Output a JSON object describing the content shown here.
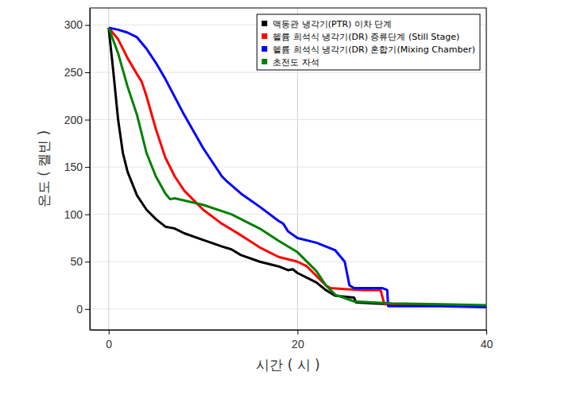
{
  "chart_data": {
    "type": "line",
    "x_label": "시간 ( 시 )",
    "y_label": "온도 ( 켈빈 )",
    "xlim": [
      -2,
      40
    ],
    "xticks": [
      0,
      20,
      40
    ],
    "ylim": [
      -22,
      318
    ],
    "yticks": [
      0,
      50,
      100,
      150,
      200,
      250,
      300
    ],
    "grid": true,
    "legend": "upper right",
    "series": [
      {
        "name": "맥동관 냉각기(PTR) 이차 단계",
        "color": "#000000",
        "x": [
          0,
          0.5,
          1,
          1.5,
          2,
          3,
          4,
          5,
          6,
          6.5,
          7,
          8,
          10,
          12,
          13,
          14,
          16,
          18,
          19,
          19.5,
          20,
          22,
          23,
          24,
          25,
          26,
          26.2,
          28,
          30,
          35,
          40
        ],
        "values": [
          297,
          250,
          200,
          165,
          145,
          120,
          105,
          95,
          87,
          86,
          85,
          80,
          73,
          66,
          63,
          57,
          50,
          45,
          41,
          42,
          38,
          28,
          20,
          14,
          13,
          12,
          7,
          6,
          5,
          4,
          3
        ]
      },
      {
        "name": "헬륨 희석식 냉각기(DR) 증류단계 (Still Stage)",
        "color": "#ff0000",
        "x": [
          0,
          1,
          2,
          3,
          3.5,
          4,
          5,
          6,
          7,
          8,
          10,
          12,
          14,
          16,
          18,
          20,
          21,
          22,
          23,
          23.5,
          25,
          27,
          28.8,
          29.2,
          30,
          35,
          40
        ],
        "values": [
          297,
          285,
          265,
          248,
          240,
          225,
          190,
          160,
          140,
          125,
          105,
          90,
          78,
          65,
          55,
          50,
          45,
          35,
          25,
          22,
          21,
          20,
          20,
          5,
          5,
          4,
          3
        ]
      },
      {
        "name": "헬륨 희석식 냉각기(DR) 혼합기(Mixing Chamber)",
        "color": "#0000ff",
        "x": [
          0,
          1,
          2,
          3,
          4,
          5,
          6,
          8,
          10,
          12,
          12.5,
          14,
          16,
          18,
          18.5,
          19,
          20,
          22,
          24,
          25,
          25.5,
          26,
          27,
          29,
          29.5,
          29.6,
          35,
          40
        ],
        "values": [
          297,
          295,
          292,
          287,
          275,
          260,
          243,
          205,
          170,
          140,
          135,
          122,
          108,
          93,
          90,
          82,
          75,
          70,
          62,
          50,
          25,
          22,
          22,
          22,
          20,
          3,
          3,
          2
        ]
      },
      {
        "name": "초전도 자석",
        "color": "#008000",
        "x": [
          0,
          1,
          2,
          3,
          3.5,
          4,
          5,
          6,
          6.5,
          7,
          10,
          13,
          16,
          18,
          20,
          22,
          23,
          24,
          26,
          28,
          30,
          35,
          40
        ],
        "values": [
          297,
          270,
          235,
          205,
          185,
          165,
          140,
          122,
          116,
          117,
          110,
          100,
          85,
          72,
          60,
          40,
          25,
          15,
          8,
          7,
          6,
          5,
          4
        ]
      }
    ]
  }
}
